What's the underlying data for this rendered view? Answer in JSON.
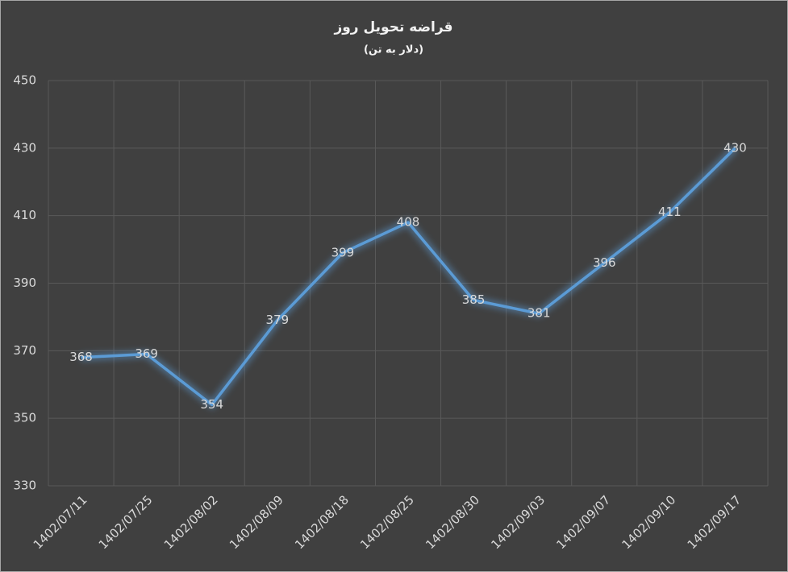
{
  "chart_data": {
    "type": "line",
    "title": "قراضه تحویل روز",
    "subtitle": "(دلار به تن)",
    "categories": [
      "1402/07/11",
      "1402/07/25",
      "1402/08/02",
      "1402/08/09",
      "1402/08/18",
      "1402/08/25",
      "1402/08/30",
      "1402/09/03",
      "1402/09/07",
      "1402/09/10",
      "1402/09/17"
    ],
    "values": [
      368,
      369,
      354,
      379,
      399,
      408,
      385,
      381,
      396,
      411,
      430
    ],
    "color": "#5b9bd5",
    "ylim": [
      330,
      450
    ],
    "yticks": [
      330,
      350,
      370,
      390,
      410,
      430,
      450
    ],
    "grid": true
  }
}
